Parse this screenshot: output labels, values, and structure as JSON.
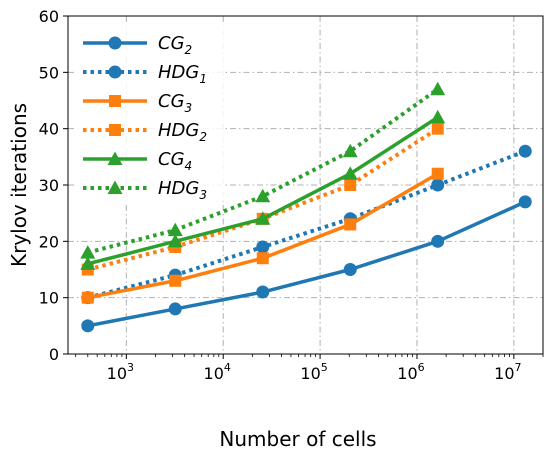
{
  "chart_data": {
    "type": "line",
    "xscale": "log",
    "xlabel": "Number of cells",
    "ylabel": "Krylov iterations",
    "xlim": [
      250,
      20000000
    ],
    "ylim": [
      0,
      60
    ],
    "yticks": [
      0,
      10,
      20,
      30,
      40,
      50,
      60
    ],
    "xticks": [
      {
        "value": 1000,
        "base": "10",
        "exp": "3"
      },
      {
        "value": 10000,
        "base": "10",
        "exp": "4"
      },
      {
        "value": 100000,
        "base": "10",
        "exp": "5"
      },
      {
        "value": 1000000,
        "base": "10",
        "exp": "6"
      },
      {
        "value": 10000000,
        "base": "10",
        "exp": "7"
      }
    ],
    "grid": true,
    "legend_position": "upper-left",
    "series": [
      {
        "name": "CG",
        "sub": "2",
        "color": "#1f77b4",
        "style": "solid",
        "marker": "circle",
        "x": [
          400,
          3200,
          25600,
          204800,
          1638400,
          13107200
        ],
        "y": [
          5,
          8,
          11,
          15,
          20,
          27
        ]
      },
      {
        "name": "HDG",
        "sub": "1",
        "color": "#1f77b4",
        "style": "dotted",
        "marker": "circle",
        "x": [
          400,
          3200,
          25600,
          204800,
          1638400,
          13107200
        ],
        "y": [
          10,
          14,
          19,
          24,
          30,
          36
        ]
      },
      {
        "name": "CG",
        "sub": "3",
        "color": "#ff7f0e",
        "style": "solid",
        "marker": "square",
        "x": [
          400,
          3200,
          25600,
          204800,
          1638400
        ],
        "y": [
          10,
          13,
          17,
          23,
          32
        ]
      },
      {
        "name": "HDG",
        "sub": "2",
        "color": "#ff7f0e",
        "style": "dotted",
        "marker": "square",
        "x": [
          400,
          3200,
          25600,
          204800,
          1638400
        ],
        "y": [
          15,
          19,
          24,
          30,
          40
        ]
      },
      {
        "name": "CG",
        "sub": "4",
        "color": "#2ca02c",
        "style": "solid",
        "marker": "triangle",
        "x": [
          400,
          3200,
          25600,
          204800,
          1638400
        ],
        "y": [
          16,
          20,
          24,
          32,
          42
        ]
      },
      {
        "name": "HDG",
        "sub": "3",
        "color": "#2ca02c",
        "style": "dotted",
        "marker": "triangle",
        "x": [
          400,
          3200,
          25600,
          204800,
          1638400
        ],
        "y": [
          18,
          22,
          28,
          36,
          47
        ]
      }
    ]
  }
}
